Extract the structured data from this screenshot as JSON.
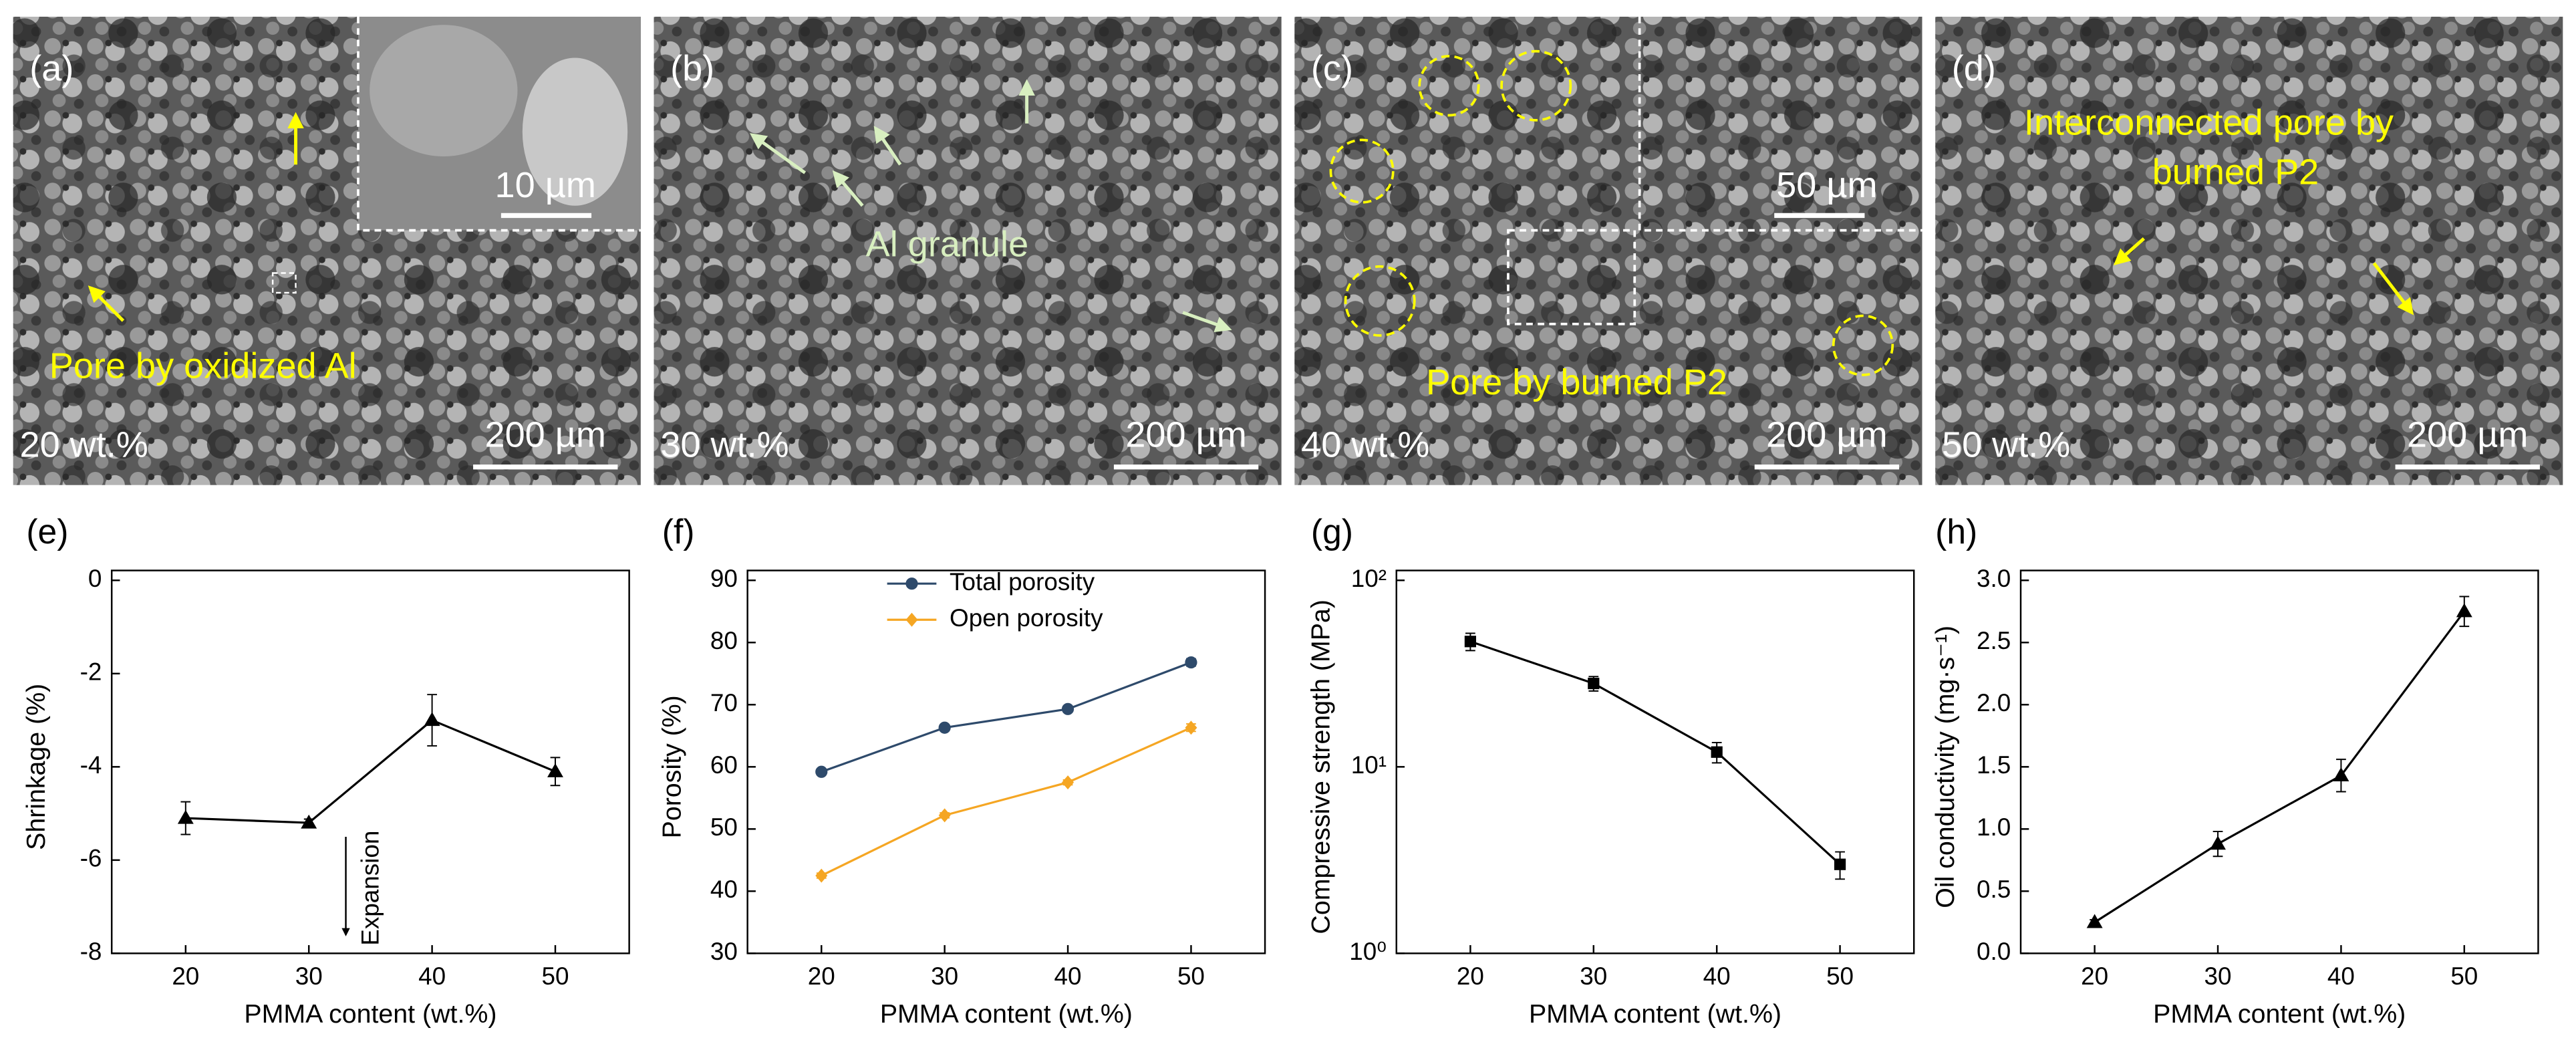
{
  "panels": [
    {
      "label": "(a)",
      "content": "20 wt.%",
      "scale_bar": "200 µm",
      "inset_scale_bar": "10 µm",
      "annotation_lines": [
        "Pore by oxidized Al"
      ]
    },
    {
      "label": "(b)",
      "content": "30 wt.%",
      "scale_bar": "200 µm",
      "annotation_lines": [
        "Al granule"
      ]
    },
    {
      "label": "(c)",
      "content": "40 wt.%",
      "scale_bar": "200 µm",
      "inset_scale_bar": "50 µm",
      "annotation_lines": [
        "Pore by burned P2"
      ]
    },
    {
      "label": "(d)",
      "content": "50 wt.%",
      "scale_bar": "200 µm",
      "annotation_lines": [
        "Interconnected pore by",
        "burned P2"
      ]
    }
  ],
  "chart_data": [
    {
      "type": "line",
      "label": "(e)",
      "x_label": "PMMA content (wt.%)",
      "y_label": "Shrinkage (%)",
      "xlim": [
        14,
        56
      ],
      "xticks": [
        20,
        30,
        40,
        50
      ],
      "ylim": [
        -8,
        0
      ],
      "yticks": [
        -8,
        -6,
        -4,
        -2,
        0
      ],
      "annotations": [
        "Expansion"
      ],
      "series": [
        {
          "color": "#000000",
          "marker": "triangle",
          "x": [
            20,
            30,
            40,
            50
          ],
          "values": [
            -5.1,
            -5.2,
            -3.0,
            -4.1
          ],
          "errors": [
            0.35,
            0.08,
            0.55,
            0.3
          ]
        }
      ]
    },
    {
      "type": "line",
      "label": "(f)",
      "x_label": "PMMA content (wt.%)",
      "y_label": "Porosity (%)",
      "xlim": [
        14,
        56
      ],
      "xticks": [
        20,
        30,
        40,
        50
      ],
      "ylim": [
        30,
        90
      ],
      "yticks": [
        30,
        40,
        50,
        60,
        70,
        80,
        90
      ],
      "legend": "top",
      "series": [
        {
          "name": "Total porosity",
          "color": "#2e4a6b",
          "marker": "circle",
          "x": [
            20,
            30,
            40,
            50
          ],
          "values": [
            59.2,
            66.3,
            69.3,
            76.8
          ],
          "errors": [
            0.4,
            0.4,
            0.4,
            0.6
          ]
        },
        {
          "name": "Open porosity",
          "color": "#f5a623",
          "marker": "diamond",
          "x": [
            20,
            30,
            40,
            50
          ],
          "values": [
            42.5,
            52.2,
            57.5,
            66.3
          ],
          "errors": [
            0.4,
            0.4,
            0.4,
            0.6
          ]
        }
      ]
    },
    {
      "type": "line",
      "label": "(g)",
      "x_label": "PMMA content (wt.%)",
      "y_label": "Compressive strength (MPa)",
      "xlim": [
        14,
        56
      ],
      "xticks": [
        20,
        30,
        40,
        50
      ],
      "log_scale": true,
      "ylim": [
        1,
        100
      ],
      "yticks": [
        {
          "value": 1,
          "label": "10⁰"
        },
        {
          "value": 10,
          "label": "10¹"
        },
        {
          "value": 100,
          "label": "10²"
        }
      ],
      "series": [
        {
          "color": "#000000",
          "marker": "square",
          "x": [
            20,
            30,
            40,
            50
          ],
          "values": [
            47,
            28,
            12,
            3
          ],
          "errors": [
            5,
            2.5,
            1.5,
            0.5
          ]
        }
      ]
    },
    {
      "type": "line",
      "label": "(h)",
      "x_label": "PMMA content (wt.%)",
      "y_label": "Oil conductivity (mg·s⁻¹)",
      "xlim": [
        14,
        56
      ],
      "xticks": [
        20,
        30,
        40,
        50
      ],
      "ylim": [
        0,
        3
      ],
      "yticks": [
        {
          "value": 0,
          "label": "0.0"
        },
        {
          "value": 0.5,
          "label": "0.5"
        },
        {
          "value": 1,
          "label": "1.0"
        },
        {
          "value": 1.5,
          "label": "1.5"
        },
        {
          "value": 2,
          "label": "2.0"
        },
        {
          "value": 2.5,
          "label": "2.5"
        },
        {
          "value": 3,
          "label": "3.0"
        }
      ],
      "series": [
        {
          "color": "#000000",
          "marker": "triangle",
          "x": [
            20,
            30,
            40,
            50
          ],
          "values": [
            0.25,
            0.88,
            1.43,
            2.75
          ],
          "errors": [
            0.02,
            0.1,
            0.13,
            0.12
          ]
        }
      ]
    }
  ]
}
